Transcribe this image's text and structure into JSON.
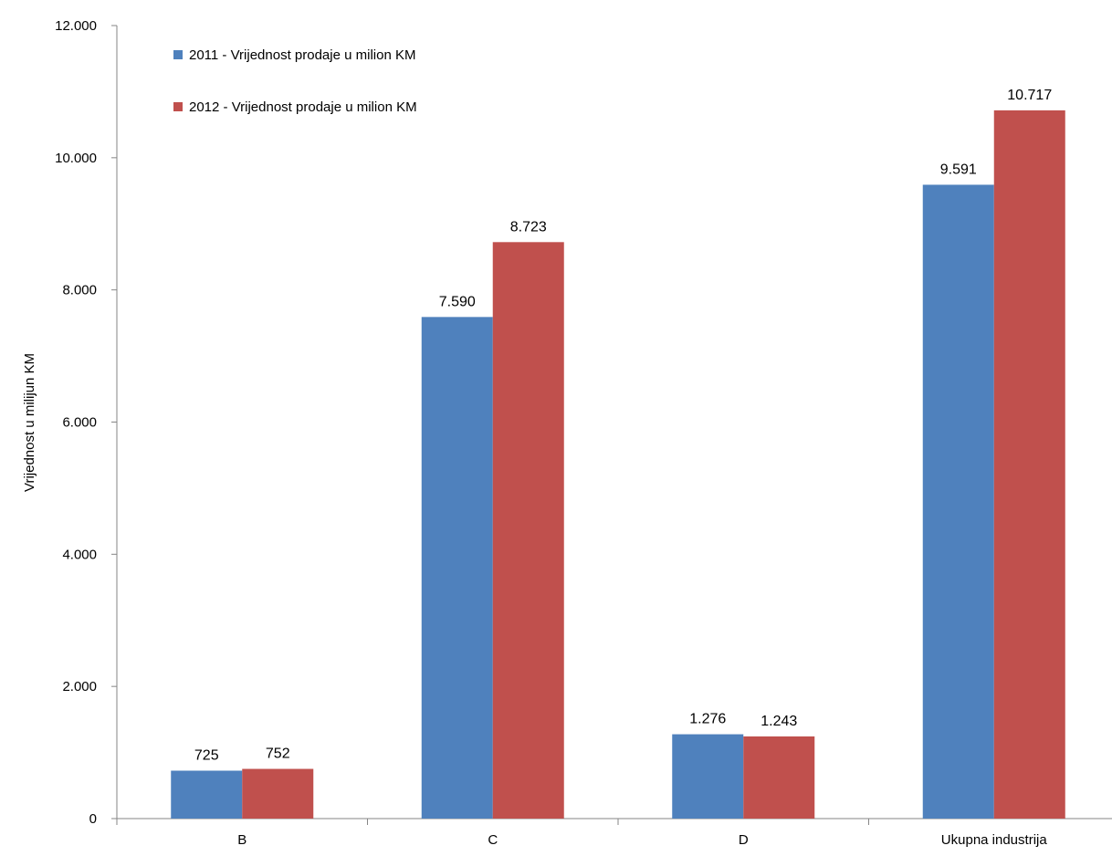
{
  "chart_data": {
    "type": "bar",
    "title": "",
    "xlabel": "",
    "ylabel": "Vrijednost u milijun KM",
    "categories": [
      "B",
      "C",
      "D",
      "Ukupna industrija"
    ],
    "series": [
      {
        "name": "2011 - Vrijednost prodaje u milion KM",
        "color": "#4F81BD",
        "values": [
          725,
          7590,
          1276,
          9591
        ],
        "labels": [
          "725",
          "7.590",
          "1.276",
          "9.591"
        ]
      },
      {
        "name": "2012 - Vrijednost prodaje u milion KM",
        "color": "#C0504D",
        "values": [
          752,
          8723,
          1243,
          10717
        ],
        "labels": [
          "752",
          "8.723",
          "1.243",
          "10.717"
        ]
      }
    ],
    "ylim": [
      0,
      12000
    ],
    "yticks": [
      0,
      2000,
      4000,
      6000,
      8000,
      10000,
      12000
    ],
    "ytick_labels": [
      "0",
      "2.000",
      "4.000",
      "6.000",
      "8.000",
      "10.000",
      "12.000"
    ],
    "grid": false,
    "legend_position": "top-left"
  }
}
